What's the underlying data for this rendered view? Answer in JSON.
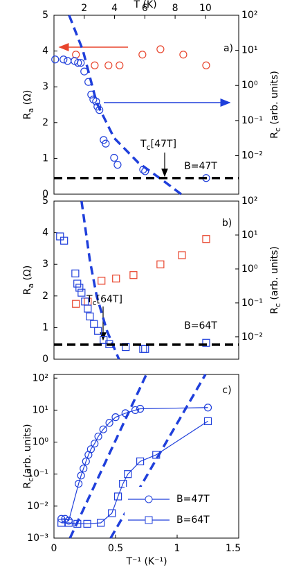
{
  "chart_data": [
    {
      "type": "scatter",
      "panel_label": "a)",
      "field_label": "B=47T",
      "annotation": [
        "T",
        "c",
        "[47T]"
      ],
      "xlabel_top": "T (K)",
      "xlim": [
        0,
        12.2
      ],
      "xticks_top": [
        2,
        4,
        6,
        8,
        10
      ],
      "ylabel": [
        "R",
        "a",
        " (Ω)"
      ],
      "ylim": [
        0,
        5
      ],
      "yticks": [
        0,
        1,
        2,
        3,
        4,
        5
      ],
      "y2label": [
        "R",
        "c",
        " (arb. units)"
      ],
      "y2scale": "log",
      "y2lim": [
        0.0008,
        100
      ],
      "y2ticks": [
        {
          "value": 0.01,
          "label": "10⁻²"
        },
        {
          "value": 0.1,
          "label": "10⁻¹"
        },
        {
          "value": 1,
          "label": "10⁰"
        },
        {
          "value": 10,
          "label": "10¹"
        },
        {
          "value": 100,
          "label": "10²"
        }
      ],
      "series": [
        {
          "marker": "circle",
          "color": "#e8442c",
          "x": [
            1.45,
            2.69,
            3.6,
            4.33,
            5.84,
            7.03,
            8.54,
            10.05
          ],
          "values": [
            3.9,
            3.6,
            3.6,
            3.6,
            3.9,
            4.05,
            3.9,
            3.6
          ]
        },
        {
          "marker": "circle",
          "color": "#1f3fdb",
          "axis": "y2",
          "x": [
            0.08,
            0.63,
            0.9,
            1.36,
            1.59,
            1.77,
            2.0,
            2.27,
            2.46,
            2.6,
            2.78,
            2.87,
            3.0,
            3.28,
            3.42,
            3.97,
            4.2,
            5.89,
            6.02,
            10.05
          ],
          "values": [
            5.5,
            5.5,
            5.0,
            5.0,
            4.4,
            4.4,
            2.5,
            1.26,
            0.55,
            0.4,
            0.35,
            0.25,
            0.2,
            0.028,
            0.022,
            0.0087,
            0.0055,
            0.004,
            0.0036,
            0.0023
          ]
        },
        {
          "marker": "none",
          "dashed": true,
          "color": "#1f3fdb",
          "axis": "y2",
          "x": [
            1.0,
            1.91,
            2.82,
            3.97,
            5.57,
            7.17,
            8.4
          ],
          "values": [
            100,
            10,
            0.32,
            0.032,
            0.0063,
            0.002,
            0.0008
          ]
        },
        {
          "marker": "none",
          "dashed": true,
          "color": "#000000",
          "axis": "y2",
          "x": [
            0,
            12.2
          ],
          "values": [
            0.0023,
            0.0023
          ]
        }
      ]
    },
    {
      "type": "scatter",
      "panel_label": "b)",
      "field_label": "B=64T",
      "annotation": [
        "T",
        "c",
        "[64T]"
      ],
      "xlim": [
        0,
        12.2
      ],
      "ylabel": [
        "R",
        "a",
        " (Ω)"
      ],
      "ylim": [
        0,
        5
      ],
      "yticks": [
        0,
        1,
        2,
        3,
        4,
        5
      ],
      "y2label": [
        "R",
        "c",
        " (arb. units)"
      ],
      "y2scale": "log",
      "y2lim": [
        0.0022,
        100
      ],
      "y2ticks": [
        {
          "value": 0.01,
          "label": "10⁻²"
        },
        {
          "value": 0.1,
          "label": "10⁻¹"
        },
        {
          "value": 1,
          "label": "10⁰"
        },
        {
          "value": 10,
          "label": "10¹"
        },
        {
          "value": 100,
          "label": "10²"
        }
      ],
      "series": [
        {
          "marker": "square",
          "color": "#e8442c",
          "x": [
            1.45,
            2.23,
            3.14,
            4.1,
            5.25,
            7.03,
            8.45,
            10.05
          ],
          "values": [
            1.75,
            1.82,
            2.48,
            2.55,
            2.66,
            3.0,
            3.29,
            3.8
          ]
        },
        {
          "marker": "square",
          "color": "#1f3fdb",
          "axis": "y2",
          "x": [
            0.4,
            0.67,
            1.41,
            1.54,
            1.68,
            1.82,
            2.05,
            2.23,
            2.37,
            2.64,
            2.91,
            3.28,
            3.65,
            4.74,
            5.89,
            6.02,
            10.05
          ],
          "values": [
            9.1,
            6.8,
            0.74,
            0.37,
            0.28,
            0.2,
            0.11,
            0.068,
            0.04,
            0.024,
            0.015,
            0.0081,
            0.0061,
            0.005,
            0.0044,
            0.0044,
            0.0067
          ]
        },
        {
          "marker": "none",
          "dashed": true,
          "color": "#1f3fdb",
          "axis": "y2",
          "x": [
            1.82,
            2.37,
            2.82,
            3.5,
            4.29
          ],
          "values": [
            100,
            1.8,
            0.16,
            0.015,
            0.0022
          ]
        },
        {
          "marker": "none",
          "dashed": true,
          "color": "#000000",
          "axis": "y2",
          "x": [
            0,
            12.2
          ],
          "values": [
            0.0059,
            0.0059
          ]
        }
      ]
    },
    {
      "type": "line",
      "panel_label": "c)",
      "xlabel": "T⁻¹ (K⁻¹)",
      "xlim": [
        0,
        1.5
      ],
      "xticks": [
        0,
        0.5,
        1,
        1.5
      ],
      "ylabel": [
        "R",
        "c",
        "(arb. units)"
      ],
      "yscale": "log",
      "ylim": [
        0.001,
        130
      ],
      "yticks": [
        {
          "value": 0.001,
          "label": "10⁻³"
        },
        {
          "value": 0.01,
          "label": "10⁻²"
        },
        {
          "value": 0.1,
          "label": "10⁻¹"
        },
        {
          "value": 1,
          "label": "10⁰"
        },
        {
          "value": 10,
          "label": "10¹"
        },
        {
          "value": 100,
          "label": "10²"
        }
      ],
      "legend": "lower right",
      "series": [
        {
          "name": "B=47T",
          "marker": "circle",
          "color": "#1f3fdb",
          "x": [
            0.06,
            0.09,
            0.12,
            0.2,
            0.22,
            0.24,
            0.26,
            0.28,
            0.3,
            0.33,
            0.36,
            0.4,
            0.45,
            0.5,
            0.58,
            0.66,
            0.7,
            1.25
          ],
          "values": [
            0.004,
            0.004,
            0.0035,
            0.05,
            0.09,
            0.15,
            0.25,
            0.4,
            0.6,
            0.9,
            1.5,
            2.5,
            4,
            6,
            8,
            10,
            11,
            12
          ]
        },
        {
          "name": "B=64T",
          "marker": "square",
          "color": "#1f3fdb",
          "x": [
            0.06,
            0.12,
            0.19,
            0.27,
            0.38,
            0.47,
            0.52,
            0.56,
            0.6,
            0.7,
            0.83,
            1.25
          ],
          "values": [
            0.003,
            0.003,
            0.0028,
            0.0028,
            0.003,
            0.006,
            0.02,
            0.05,
            0.1,
            0.25,
            0.4,
            4.5
          ]
        },
        {
          "marker": "none",
          "dashed": true,
          "color": "#1f3fdb",
          "x": [
            0.13,
            0.75
          ],
          "values": [
            0.001,
            130
          ]
        },
        {
          "marker": "none",
          "dashed": true,
          "color": "#1f3fdb",
          "x": [
            0.46,
            1.23
          ],
          "values": [
            0.001,
            130
          ]
        }
      ]
    }
  ]
}
